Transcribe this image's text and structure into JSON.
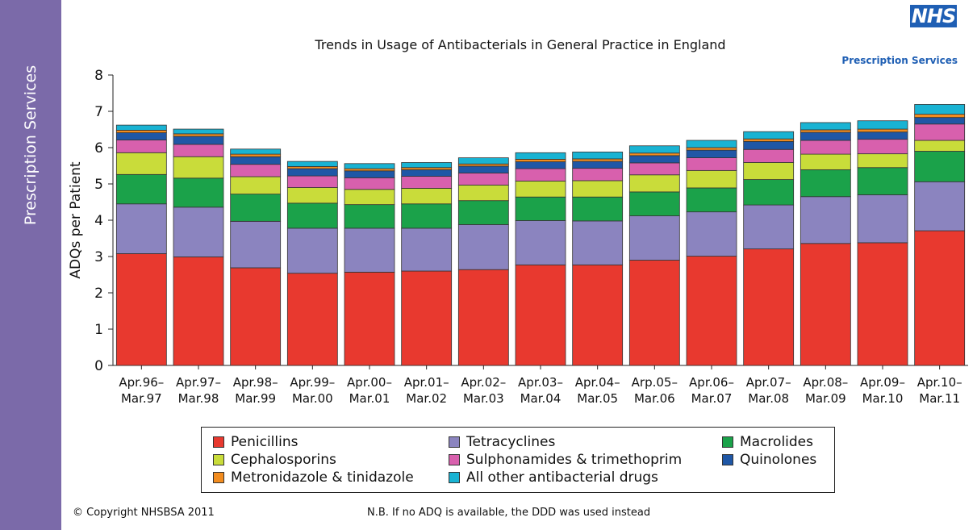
{
  "sidebar": {
    "label": "Prescription Services"
  },
  "logo": {
    "text": "NHS",
    "subtitle": "Prescription Services"
  },
  "footer": {
    "copyright": "© Copyright NHSBSA 2011",
    "note": "N.B. If no ADQ is available, the DDD was used instead"
  },
  "chart_data": {
    "type": "bar",
    "stacked": true,
    "title": "Trends in Usage of Antibacterials in General Practice in England",
    "xlabel": "",
    "ylabel": "ADQs per Patient",
    "ylim": [
      0,
      8
    ],
    "yticks": [
      "0",
      "1",
      "2",
      "3",
      "4",
      "5",
      "6",
      "7",
      "8"
    ],
    "grid": false,
    "legend_position": "bottom",
    "categories": [
      [
        "Apr.96–",
        "Mar.97"
      ],
      [
        "Apr.97–",
        "Mar.98"
      ],
      [
        "Apr.98–",
        "Mar.99"
      ],
      [
        "Apr.99–",
        "Mar.00"
      ],
      [
        "Apr.00–",
        "Mar.01"
      ],
      [
        "Apr.01–",
        "Mar.02"
      ],
      [
        "Apr.02–",
        "Mar.03"
      ],
      [
        "Apr.03–",
        "Mar.04"
      ],
      [
        "Apr.04–",
        "Mar.05"
      ],
      [
        "Arp.05–",
        "Mar.06"
      ],
      [
        "Apr.06–",
        "Mar.07"
      ],
      [
        "Apr.07–",
        "Mar.08"
      ],
      [
        "Apr.08–",
        "Mar.09"
      ],
      [
        "Apr.09–",
        "Mar.10"
      ],
      [
        "Apr.10–",
        "Mar.11"
      ]
    ],
    "series": [
      {
        "name": "Penicillins",
        "color": "#e8392f",
        "values": [
          3.08,
          2.99,
          2.69,
          2.54,
          2.57,
          2.6,
          2.64,
          2.77,
          2.77,
          2.9,
          3.01,
          3.21,
          3.36,
          3.38,
          3.71
        ]
      },
      {
        "name": "Tetracyclines",
        "color": "#8b84bf",
        "values": [
          1.37,
          1.37,
          1.28,
          1.24,
          1.21,
          1.18,
          1.24,
          1.22,
          1.21,
          1.22,
          1.22,
          1.21,
          1.29,
          1.32,
          1.35
        ]
      },
      {
        "name": "Macrolides",
        "color": "#1ba24a",
        "values": [
          0.81,
          0.8,
          0.75,
          0.69,
          0.65,
          0.67,
          0.66,
          0.65,
          0.66,
          0.66,
          0.66,
          0.7,
          0.74,
          0.75,
          0.84
        ]
      },
      {
        "name": "Cephalosporins",
        "color": "#c9dc3a",
        "values": [
          0.6,
          0.59,
          0.48,
          0.43,
          0.42,
          0.43,
          0.43,
          0.44,
          0.45,
          0.47,
          0.48,
          0.47,
          0.43,
          0.38,
          0.3
        ]
      },
      {
        "name": "Sulphonamides & trimethoprim",
        "color": "#d860ad",
        "values": [
          0.35,
          0.34,
          0.34,
          0.32,
          0.32,
          0.33,
          0.33,
          0.34,
          0.34,
          0.33,
          0.35,
          0.36,
          0.38,
          0.4,
          0.45
        ]
      },
      {
        "name": "Quinolones",
        "color": "#1f57a6",
        "values": [
          0.2,
          0.22,
          0.21,
          0.2,
          0.19,
          0.18,
          0.19,
          0.19,
          0.19,
          0.2,
          0.21,
          0.22,
          0.22,
          0.2,
          0.18
        ]
      },
      {
        "name": "Metronidazole & tinidazole",
        "color": "#f28c1f",
        "values": [
          0.07,
          0.07,
          0.07,
          0.06,
          0.06,
          0.06,
          0.06,
          0.07,
          0.07,
          0.07,
          0.07,
          0.07,
          0.07,
          0.08,
          0.09
        ]
      },
      {
        "name": "All other antibacterial drugs",
        "color": "#19b3d3",
        "values": [
          0.14,
          0.13,
          0.14,
          0.14,
          0.14,
          0.14,
          0.17,
          0.18,
          0.19,
          0.2,
          0.2,
          0.2,
          0.2,
          0.23,
          0.27
        ]
      }
    ]
  }
}
